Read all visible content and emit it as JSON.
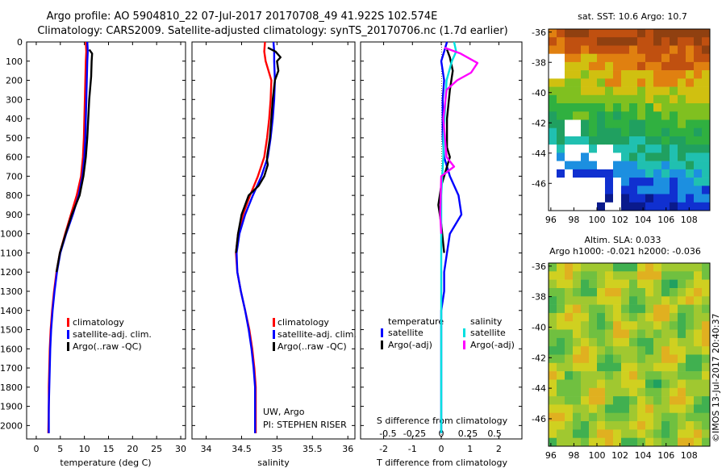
{
  "title": {
    "line1": "Argo profile: AO 5904810_22 07-Jul-2017 20170708_49 41.922S 102.574E",
    "line2": "Climatology: CARS2009. Satellite-adjusted climatology: synTS_20170706.nc (1.7d earlier)"
  },
  "colors": {
    "clim": "#ff0000",
    "sat": "#0000ff",
    "argo": "#000000",
    "sat_s": "#00e0e0",
    "argo_s": "#ff00ff"
  },
  "chart_data": [
    {
      "type": "line",
      "id": "temperature",
      "xlabel": "temperature (deg C)",
      "xlim": [
        -2,
        31
      ],
      "ylim": [
        2070,
        0
      ],
      "xticks": [
        "0",
        "5",
        "10",
        "15",
        "20",
        "25",
        "30"
      ],
      "xtick_values": [
        0,
        5,
        10,
        15,
        20,
        25,
        30
      ],
      "yticks": [
        "0",
        "100",
        "200",
        "300",
        "400",
        "500",
        "600",
        "700",
        "800",
        "900",
        "1000",
        "1100",
        "1200",
        "1300",
        "1400",
        "1500",
        "1600",
        "1700",
        "1800",
        "1900",
        "2000"
      ],
      "legend": [
        "climatology",
        "satellite-adj. clim.",
        "Argo(..raw -QC)"
      ],
      "series": [
        {
          "name": "climatology",
          "color": "#ff0000",
          "x": [
            10.3,
            10.4,
            10.3,
            10.2,
            10.1,
            10.0,
            9.9,
            9.7,
            9.3,
            8.4,
            7.2,
            6.0,
            4.9,
            4.2,
            3.7,
            3.3,
            3.0,
            2.8,
            2.7,
            2.6,
            2.6,
            2.5
          ],
          "y": [
            0,
            50,
            100,
            200,
            300,
            400,
            500,
            600,
            700,
            800,
            900,
            1000,
            1100,
            1200,
            1300,
            1400,
            1500,
            1600,
            1700,
            1800,
            1900,
            2040
          ]
        },
        {
          "name": "satellite-adj. clim.",
          "color": "#0000ff",
          "x": [
            10.6,
            10.7,
            10.6,
            10.5,
            10.4,
            10.3,
            10.2,
            10.0,
            9.6,
            8.8,
            7.6,
            6.2,
            5.0,
            4.3,
            3.8,
            3.4,
            3.1,
            2.9,
            2.8,
            2.7,
            2.6,
            2.6
          ],
          "y": [
            0,
            50,
            100,
            200,
            300,
            400,
            500,
            600,
            700,
            800,
            900,
            1000,
            1100,
            1200,
            1300,
            1400,
            1500,
            1600,
            1700,
            1800,
            1900,
            2040
          ]
        },
        {
          "name": "Argo(..raw -QC)",
          "color": "#000000",
          "x": [
            11.0,
            11.6,
            11.5,
            11.4,
            11.0,
            10.8,
            10.6,
            10.3,
            9.8,
            9.0,
            7.4,
            6.1,
            4.9,
            4.2
          ],
          "y": [
            40,
            60,
            100,
            180,
            300,
            400,
            500,
            600,
            700,
            800,
            900,
            1000,
            1100,
            1200
          ]
        }
      ]
    },
    {
      "type": "line",
      "id": "salinity",
      "xlabel": "salinity",
      "xlim": [
        33.8,
        36.1
      ],
      "ylim": [
        2070,
        0
      ],
      "xticks": [
        "34",
        "34.5",
        "35",
        "35.5",
        "36"
      ],
      "xtick_values": [
        34,
        34.5,
        35,
        35.5,
        36
      ],
      "legend": [
        "climatology",
        "satellite-adj. clim.",
        "Argo(..raw -QC)"
      ],
      "annotations": [
        "UW, Argo",
        "PI: STEPHEN RISER"
      ],
      "series": [
        {
          "name": "climatology",
          "color": "#ff0000",
          "x": [
            34.83,
            34.82,
            34.84,
            34.92,
            34.91,
            34.89,
            34.86,
            34.82,
            34.73,
            34.62,
            34.52,
            34.45,
            34.42,
            34.44,
            34.49,
            34.55,
            34.61,
            34.65,
            34.68,
            34.7,
            34.7,
            34.7
          ],
          "y": [
            0,
            50,
            100,
            200,
            300,
            400,
            500,
            600,
            700,
            800,
            900,
            1000,
            1100,
            1200,
            1300,
            1400,
            1500,
            1600,
            1700,
            1800,
            1900,
            2040
          ]
        },
        {
          "name": "satellite-adj. clim.",
          "color": "#0000ff",
          "x": [
            34.95,
            34.96,
            34.96,
            34.97,
            34.96,
            34.94,
            34.91,
            34.87,
            34.78,
            34.66,
            34.55,
            34.47,
            34.43,
            34.44,
            34.49,
            34.55,
            34.6,
            34.64,
            34.67,
            34.69,
            34.69,
            34.69
          ],
          "y": [
            0,
            50,
            100,
            200,
            300,
            400,
            500,
            600,
            700,
            800,
            900,
            1000,
            1100,
            1200,
            1300,
            1400,
            1500,
            1600,
            1700,
            1800,
            1900,
            2040
          ]
        },
        {
          "name": "Argo(..raw -QC)",
          "color": "#000000",
          "x": [
            34.87,
            34.98,
            35.05,
            35.0,
            35.02,
            34.97,
            34.94,
            34.92,
            34.9,
            34.86,
            34.86,
            34.87,
            34.82,
            34.74,
            34.6,
            34.5,
            34.45,
            34.42
          ],
          "y": [
            30,
            50,
            80,
            100,
            150,
            200,
            300,
            400,
            500,
            600,
            620,
            640,
            700,
            750,
            800,
            900,
            1000,
            1100
          ]
        }
      ]
    },
    {
      "type": "line",
      "id": "differences",
      "xlabel": "T difference from climatology",
      "xlabel_top": "S difference from climatology",
      "xlim": [
        -2.8,
        2.8
      ],
      "ylim": [
        2070,
        0
      ],
      "xticks": [
        "-2",
        "-1",
        "0",
        "1",
        "2"
      ],
      "xtick_values": [
        -2,
        -1,
        0,
        1,
        2
      ],
      "xticks_s": [
        "-0.5",
        "-0.25",
        "0",
        "0.25",
        "0.5"
      ],
      "xtick_values_s": [
        -0.5,
        -0.25,
        0,
        0.25,
        0.5
      ],
      "legend_temperature": {
        "heading": "temperature",
        "entries": [
          "satellite",
          "Argo(-adj)"
        ]
      },
      "legend_salinity": {
        "heading": "salinity",
        "entries": [
          "satellite",
          "Argo(-adj)"
        ]
      },
      "series": [
        {
          "name": "T satellite",
          "color": "#0000ff",
          "x": [
            0.2,
            0.1,
            0.0,
            0.1,
            0.05,
            0.05,
            0.05,
            0.1,
            0.3,
            0.6,
            0.7,
            0.3,
            0.2,
            0.1,
            0.1,
            0.0,
            0.0,
            0.0,
            0.0,
            0.0,
            0.0
          ],
          "y": [
            0,
            50,
            100,
            200,
            300,
            400,
            500,
            600,
            700,
            800,
            900,
            1000,
            1100,
            1200,
            1300,
            1400,
            1500,
            1600,
            1700,
            1800,
            2040
          ]
        },
        {
          "name": "T Argo(-adj)",
          "color": "#000000",
          "x": [
            0.2,
            0.3,
            0.4,
            0.3,
            0.2,
            0.2,
            0.3,
            0.2,
            0.0,
            -0.1,
            0.0,
            0.1
          ],
          "y": [
            40,
            80,
            150,
            250,
            400,
            550,
            600,
            650,
            750,
            850,
            950,
            1100
          ]
        },
        {
          "name": "S satellite",
          "color": "#00e0e0",
          "x": [
            0.12,
            0.14,
            0.1,
            0.05,
            0.04,
            0.03,
            0.02,
            0.02,
            0.0,
            0.0,
            0.0,
            0.0,
            0.0,
            0.0
          ],
          "y": [
            0,
            50,
            100,
            200,
            300,
            400,
            500,
            600,
            800,
            1000,
            1200,
            1400,
            1800,
            2040
          ]
        },
        {
          "name": "S Argo(-adj)",
          "color": "#ff00ff",
          "x": [
            0.03,
            0.18,
            0.34,
            0.28,
            0.15,
            0.05,
            0.02,
            0.05,
            0.12,
            0.0,
            -0.01,
            0.0
          ],
          "y": [
            30,
            60,
            110,
            160,
            200,
            250,
            400,
            600,
            650,
            700,
            900,
            1000
          ]
        }
      ]
    },
    {
      "type": "heatmap",
      "id": "sst-map",
      "title": "sat. SST: 10.6 Argo: 10.7",
      "xticks": [
        "96",
        "98",
        "100",
        "102",
        "104",
        "106",
        "108"
      ],
      "yticks": [
        "-36",
        "-38",
        "-40",
        "-42",
        "-44",
        "-46"
      ],
      "xlim": [
        95.8,
        109.8
      ],
      "ylim": [
        -47.8,
        -35.8
      ]
    },
    {
      "type": "heatmap",
      "id": "sla-map",
      "title": "Altim. SLA: 0.033",
      "subtitle": "Argo h1000: -0.021 h2000: -0.036",
      "xticks": [
        "96",
        "98",
        "100",
        "102",
        "104",
        "106",
        "108"
      ],
      "yticks": [
        "-36",
        "-38",
        "-40",
        "-42",
        "-44",
        "-46"
      ],
      "xlim": [
        95.8,
        109.8
      ],
      "ylim": [
        -47.8,
        -35.8
      ]
    }
  ],
  "footer": "©IMOS 13-Jul-2017 20:40:37"
}
